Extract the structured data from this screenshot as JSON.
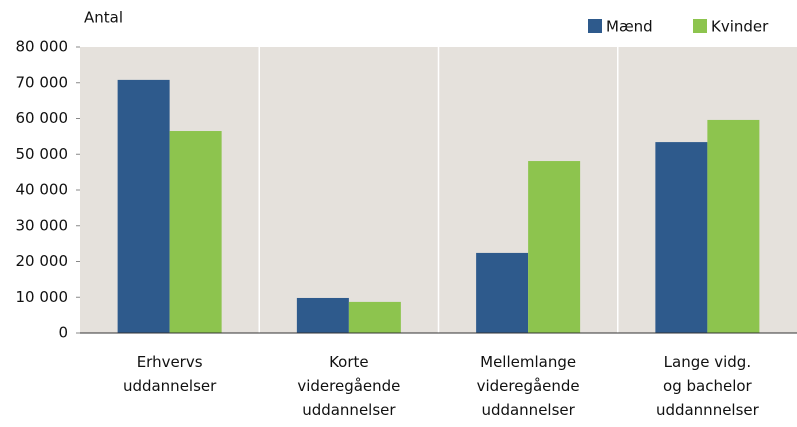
{
  "chart_data": {
    "type": "bar",
    "y_label": "Antal",
    "categories": [
      "Erhvervs\nuddannelser",
      "Korte\nvideregående\nuddannelser",
      "Mellemlange\nvideregående\nuddannelser",
      "Lange vidg.\nog bachelor\nuddannnelser"
    ],
    "series": [
      {
        "name": "Mænd",
        "color": "#2e5a8c",
        "values": [
          70800,
          9800,
          22400,
          53400
        ]
      },
      {
        "name": "Kvinder",
        "color": "#8dc44e",
        "values": [
          56500,
          8700,
          48100,
          59600
        ]
      }
    ],
    "ylim": [
      0,
      80000
    ],
    "yticks": [
      0,
      {
        "value": 10000,
        "label": "10 000"
      },
      {
        "value": 20000,
        "label": "20 000"
      },
      {
        "value": 30000,
        "label": "30 000"
      },
      {
        "value": 40000,
        "label": "40 000"
      },
      {
        "value": 50000,
        "label": "50 000"
      },
      {
        "value": 60000,
        "label": "60 000"
      },
      {
        "value": 70000,
        "label": "70 000"
      },
      {
        "value": 80000,
        "label": "80 000"
      }
    ],
    "legend": "top-right",
    "background": "#e5e1dc"
  }
}
